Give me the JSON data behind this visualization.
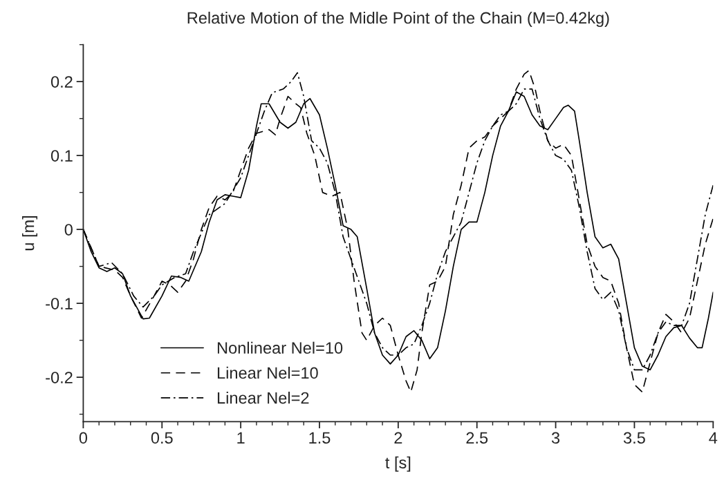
{
  "chart_data": {
    "type": "line",
    "title": "Relative Motion of the Midle Point of the Chain (M=0.42kg)",
    "xlabel": "t [s]",
    "ylabel": "u [m]",
    "xlim": [
      0,
      4
    ],
    "ylim": [
      -0.26,
      0.25
    ],
    "xticks": [
      0,
      0.5,
      1,
      1.5,
      2,
      2.5,
      3,
      3.5,
      4
    ],
    "yticks": [
      -0.2,
      -0.1,
      0,
      0.1,
      0.2
    ],
    "grid": false,
    "legend": "bottom left",
    "series": [
      {
        "name": "Nonlinear Nel=10",
        "color": "#000000",
        "line_style": "solid",
        "x": [
          0,
          0.05,
          0.1,
          0.15,
          0.2,
          0.25,
          0.3,
          0.38,
          0.42,
          0.5,
          0.56,
          0.62,
          0.67,
          0.75,
          0.8,
          0.85,
          0.9,
          0.95,
          1.0,
          1.05,
          1.1,
          1.13,
          1.18,
          1.25,
          1.3,
          1.35,
          1.4,
          1.44,
          1.5,
          1.55,
          1.6,
          1.65,
          1.7,
          1.74,
          1.8,
          1.85,
          1.9,
          1.95,
          2.0,
          2.05,
          2.1,
          2.15,
          2.2,
          2.25,
          2.3,
          2.35,
          2.4,
          2.45,
          2.5,
          2.55,
          2.6,
          2.65,
          2.7,
          2.75,
          2.8,
          2.85,
          2.9,
          2.95,
          3.0,
          3.05,
          3.08,
          3.12,
          3.15,
          3.2,
          3.25,
          3.3,
          3.35,
          3.4,
          3.45,
          3.5,
          3.55,
          3.6,
          3.65,
          3.7,
          3.75,
          3.8,
          3.85,
          3.9,
          3.93,
          3.97,
          4.0
        ],
        "values": [
          0,
          -0.03,
          -0.052,
          -0.057,
          -0.052,
          -0.06,
          -0.09,
          -0.121,
          -0.12,
          -0.09,
          -0.063,
          -0.065,
          -0.07,
          -0.03,
          0.01,
          0.04,
          0.047,
          0.045,
          0.043,
          0.08,
          0.14,
          0.17,
          0.17,
          0.145,
          0.137,
          0.145,
          0.17,
          0.177,
          0.155,
          0.11,
          0.06,
          0.005,
          0.0,
          -0.01,
          -0.08,
          -0.14,
          -0.17,
          -0.182,
          -0.17,
          -0.145,
          -0.137,
          -0.15,
          -0.175,
          -0.16,
          -0.11,
          -0.05,
          0.0,
          0.01,
          0.01,
          0.05,
          0.1,
          0.14,
          0.16,
          0.186,
          0.18,
          0.155,
          0.14,
          0.135,
          0.15,
          0.165,
          0.168,
          0.16,
          0.12,
          0.05,
          -0.01,
          -0.025,
          -0.02,
          -0.04,
          -0.1,
          -0.16,
          -0.185,
          -0.19,
          -0.17,
          -0.145,
          -0.133,
          -0.13,
          -0.147,
          -0.16,
          -0.16,
          -0.12,
          -0.085
        ]
      },
      {
        "name": "Linear Nel=10",
        "color": "#000000",
        "line_style": "dashed",
        "x": [
          0,
          0.1,
          0.2,
          0.25,
          0.3,
          0.37,
          0.45,
          0.5,
          0.55,
          0.6,
          0.65,
          0.7,
          0.75,
          0.8,
          0.85,
          0.9,
          0.95,
          1.0,
          1.05,
          1.1,
          1.18,
          1.22,
          1.25,
          1.3,
          1.35,
          1.38,
          1.42,
          1.47,
          1.52,
          1.58,
          1.63,
          1.68,
          1.72,
          1.77,
          1.8,
          1.85,
          1.9,
          1.95,
          2.0,
          2.05,
          2.08,
          2.12,
          2.15,
          2.2,
          2.25,
          2.3,
          2.35,
          2.4,
          2.45,
          2.5,
          2.55,
          2.6,
          2.65,
          2.7,
          2.75,
          2.8,
          2.83,
          2.87,
          2.9,
          2.95,
          3.0,
          3.05,
          3.1,
          3.15,
          3.2,
          3.25,
          3.3,
          3.35,
          3.4,
          3.45,
          3.5,
          3.55,
          3.6,
          3.65,
          3.7,
          3.75,
          3.8,
          3.85,
          3.9,
          3.95,
          4.0
        ],
        "values": [
          0,
          -0.05,
          -0.055,
          -0.065,
          -0.09,
          -0.12,
          -0.09,
          -0.07,
          -0.075,
          -0.085,
          -0.07,
          -0.04,
          0.0,
          0.03,
          0.045,
          0.04,
          0.05,
          0.08,
          0.11,
          0.13,
          0.135,
          0.128,
          0.15,
          0.18,
          0.17,
          0.165,
          0.13,
          0.1,
          0.05,
          0.045,
          0.05,
          0.0,
          -0.07,
          -0.14,
          -0.15,
          -0.13,
          -0.12,
          -0.13,
          -0.17,
          -0.205,
          -0.22,
          -0.19,
          -0.14,
          -0.075,
          -0.07,
          -0.05,
          0.02,
          0.06,
          0.11,
          0.12,
          0.125,
          0.14,
          0.15,
          0.16,
          0.19,
          0.21,
          0.215,
          0.19,
          0.16,
          0.12,
          0.11,
          0.115,
          0.1,
          0.04,
          -0.02,
          -0.05,
          -0.065,
          -0.07,
          -0.1,
          -0.16,
          -0.21,
          -0.22,
          -0.18,
          -0.14,
          -0.115,
          -0.125,
          -0.14,
          -0.12,
          -0.07,
          -0.02,
          0.015
        ]
      },
      {
        "name": "Linear Nel=2",
        "color": "#000000",
        "line_style": "dashdot",
        "x": [
          0,
          0.1,
          0.18,
          0.25,
          0.32,
          0.38,
          0.45,
          0.5,
          0.58,
          0.65,
          0.7,
          0.8,
          0.9,
          1.0,
          1.05,
          1.1,
          1.15,
          1.2,
          1.27,
          1.32,
          1.36,
          1.4,
          1.45,
          1.5,
          1.55,
          1.6,
          1.65,
          1.7,
          1.75,
          1.8,
          1.85,
          1.9,
          1.95,
          2.0,
          2.05,
          2.1,
          2.15,
          2.2,
          2.25,
          2.3,
          2.4,
          2.45,
          2.5,
          2.55,
          2.6,
          2.65,
          2.7,
          2.75,
          2.8,
          2.85,
          2.9,
          2.95,
          3.0,
          3.05,
          3.1,
          3.15,
          3.2,
          3.25,
          3.3,
          3.35,
          3.4,
          3.45,
          3.5,
          3.55,
          3.6,
          3.65,
          3.7,
          3.75,
          3.8,
          3.85,
          3.9,
          3.95,
          4.0
        ],
        "values": [
          0,
          -0.05,
          -0.045,
          -0.06,
          -0.09,
          -0.105,
          -0.09,
          -0.075,
          -0.065,
          -0.06,
          -0.03,
          0.02,
          0.035,
          0.07,
          0.1,
          0.13,
          0.16,
          0.185,
          0.19,
          0.2,
          0.212,
          0.18,
          0.12,
          0.11,
          0.09,
          0.05,
          -0.01,
          -0.04,
          -0.07,
          -0.1,
          -0.14,
          -0.16,
          -0.17,
          -0.17,
          -0.16,
          -0.155,
          -0.13,
          -0.1,
          -0.06,
          -0.03,
          0.01,
          0.05,
          0.09,
          0.12,
          0.14,
          0.155,
          0.16,
          0.17,
          0.19,
          0.19,
          0.15,
          0.12,
          0.1,
          0.095,
          0.08,
          0.03,
          -0.03,
          -0.08,
          -0.095,
          -0.085,
          -0.11,
          -0.16,
          -0.19,
          -0.19,
          -0.17,
          -0.14,
          -0.125,
          -0.13,
          -0.13,
          -0.1,
          -0.04,
          0.02,
          0.06
        ]
      }
    ]
  }
}
